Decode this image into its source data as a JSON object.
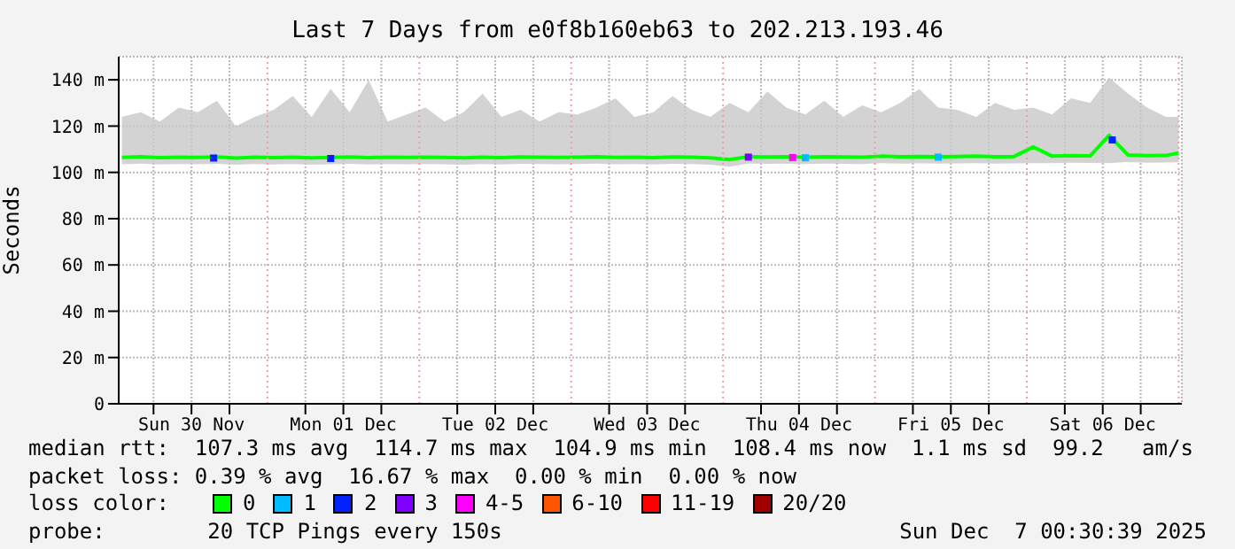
{
  "chart_data": {
    "type": "line",
    "title": "Last 7 Days from e0f8b160eb63 to 202.213.193.46",
    "ylabel": "Seconds",
    "legend_title": "loss color:",
    "legend": "bottom",
    "grid": true,
    "xlim": [
      "2025-11-30T00:30",
      "2025-12-07T00:30"
    ],
    "xticks": [
      {
        "value": "2025-11-30T06:00",
        "label": null
      },
      {
        "value": "2025-11-30T12:00",
        "label": "Sun 30 Nov"
      },
      {
        "value": "2025-11-30T18:00",
        "label": null
      },
      {
        "value": "2025-12-01T06:00",
        "label": null
      },
      {
        "value": "2025-12-01T12:00",
        "label": "Mon 01 Dec"
      },
      {
        "value": "2025-12-01T18:00",
        "label": null
      },
      {
        "value": "2025-12-02T06:00",
        "label": null
      },
      {
        "value": "2025-12-02T12:00",
        "label": "Tue 02 Dec"
      },
      {
        "value": "2025-12-02T18:00",
        "label": null
      },
      {
        "value": "2025-12-03T06:00",
        "label": null
      },
      {
        "value": "2025-12-03T12:00",
        "label": "Wed 03 Dec"
      },
      {
        "value": "2025-12-03T18:00",
        "label": null
      },
      {
        "value": "2025-12-04T06:00",
        "label": null
      },
      {
        "value": "2025-12-04T12:00",
        "label": "Thu 04 Dec"
      },
      {
        "value": "2025-12-04T18:00",
        "label": null
      },
      {
        "value": "2025-12-05T06:00",
        "label": null
      },
      {
        "value": "2025-12-05T12:00",
        "label": "Fri 05 Dec"
      },
      {
        "value": "2025-12-05T18:00",
        "label": null
      },
      {
        "value": "2025-12-06T06:00",
        "label": null
      },
      {
        "value": "2025-12-06T12:00",
        "label": "Sat 06 Dec"
      },
      {
        "value": "2025-12-06T18:00",
        "label": null
      }
    ],
    "ylim": [
      0,
      150
    ],
    "yticks": [
      {
        "value": 0,
        "label": "0"
      },
      {
        "value": 20,
        "label": "20 m"
      },
      {
        "value": 40,
        "label": "40 m"
      },
      {
        "value": 60,
        "label": "60 m"
      },
      {
        "value": 80,
        "label": "80 m"
      },
      {
        "value": 100,
        "label": "100 m"
      },
      {
        "value": 120,
        "label": "120 m"
      },
      {
        "value": 140,
        "label": "140 m"
      }
    ],
    "ref_lines": [
      {
        "axis": "x",
        "value": "2025-12-01T00:00",
        "color": "#f0a0a0",
        "line_style": "dotted"
      },
      {
        "axis": "x",
        "value": "2025-12-02T00:00",
        "color": "#f0a0a0",
        "line_style": "dotted"
      },
      {
        "axis": "x",
        "value": "2025-12-03T00:00",
        "color": "#f0a0a0",
        "line_style": "dotted"
      },
      {
        "axis": "x",
        "value": "2025-12-04T00:00",
        "color": "#f0a0a0",
        "line_style": "dotted"
      },
      {
        "axis": "x",
        "value": "2025-12-05T00:00",
        "color": "#f0a0a0",
        "line_style": "dotted"
      },
      {
        "axis": "x",
        "value": "2025-12-06T00:00",
        "color": "#f0a0a0",
        "line_style": "dotted"
      },
      {
        "axis": "x",
        "value": "2025-12-07T00:00",
        "color": "#f0a0a0",
        "line_style": "dotted"
      }
    ],
    "x": [
      "2025-11-30T01:00",
      "2025-11-30T04:00",
      "2025-11-30T07:00",
      "2025-11-30T10:00",
      "2025-11-30T13:00",
      "2025-11-30T16:00",
      "2025-11-30T19:00",
      "2025-11-30T22:00",
      "2025-12-01T01:00",
      "2025-12-01T04:00",
      "2025-12-01T07:00",
      "2025-12-01T10:00",
      "2025-12-01T13:00",
      "2025-12-01T16:00",
      "2025-12-01T19:00",
      "2025-12-01T22:00",
      "2025-12-02T01:00",
      "2025-12-02T04:00",
      "2025-12-02T07:00",
      "2025-12-02T10:00",
      "2025-12-02T13:00",
      "2025-12-02T16:00",
      "2025-12-02T19:00",
      "2025-12-02T22:00",
      "2025-12-03T01:00",
      "2025-12-03T04:00",
      "2025-12-03T07:00",
      "2025-12-03T10:00",
      "2025-12-03T13:00",
      "2025-12-03T16:00",
      "2025-12-03T19:00",
      "2025-12-03T22:00",
      "2025-12-04T01:00",
      "2025-12-04T04:00",
      "2025-12-04T07:00",
      "2025-12-04T10:00",
      "2025-12-04T13:00",
      "2025-12-04T16:00",
      "2025-12-04T19:00",
      "2025-12-04T22:00",
      "2025-12-05T01:00",
      "2025-12-05T04:00",
      "2025-12-05T07:00",
      "2025-12-05T10:00",
      "2025-12-05T13:00",
      "2025-12-05T16:00",
      "2025-12-05T19:00",
      "2025-12-05T22:00",
      "2025-12-06T01:00",
      "2025-12-06T04:00",
      "2025-12-06T07:00",
      "2025-12-06T10:00",
      "2025-12-06T13:00",
      "2025-12-06T16:00",
      "2025-12-06T19:00",
      "2025-12-06T22:00",
      "2025-12-07T00:00"
    ],
    "series": [
      {
        "name": "0",
        "color": "#00ff00",
        "values": [
          106.5,
          106.8,
          106.4,
          106.6,
          106.5,
          106.7,
          106.2,
          106.6,
          106.4,
          106.6,
          106.3,
          106.5,
          106.7,
          106.4,
          106.6,
          106.5,
          106.6,
          106.5,
          106.3,
          106.6,
          106.4,
          106.7,
          106.6,
          106.5,
          106.6,
          106.8,
          106.5,
          106.6,
          106.4,
          106.7,
          106.6,
          106.3,
          105.5,
          106.8,
          106.7,
          106.8,
          106.6,
          106.8,
          106.7,
          106.6,
          107,
          106.8,
          106.9,
          106.8,
          106.9,
          107,
          106.8,
          106.9,
          111,
          107,
          107.2,
          107.1,
          116,
          107.5,
          107.2,
          107.3,
          108.4
        ],
        "lower": [
          103.5,
          103.8,
          103.4,
          103.6,
          103.5,
          103.7,
          103.3,
          103.6,
          103.4,
          103.6,
          103.3,
          103.5,
          103.7,
          103.4,
          103.6,
          103.5,
          103.6,
          103.5,
          103.3,
          103.6,
          103.4,
          103.7,
          103.6,
          103.5,
          103.6,
          103.8,
          103.5,
          103.6,
          103.4,
          103.7,
          103.6,
          103.3,
          102.5,
          103.8,
          103.7,
          103.8,
          103.6,
          103.8,
          103.7,
          103.6,
          104,
          103.8,
          103.9,
          103.8,
          103.9,
          104,
          103.8,
          103.9,
          104,
          104,
          104.2,
          104.1,
          104,
          104.5,
          104.2,
          104.3,
          104.4
        ],
        "upper": [
          124,
          126,
          122,
          128,
          126,
          131,
          120,
          124,
          127,
          133,
          124,
          136,
          126,
          140,
          122,
          125,
          128,
          122,
          126,
          134,
          124,
          127,
          122,
          126,
          125,
          128,
          132,
          124,
          126,
          133,
          127,
          124,
          130,
          126,
          135,
          128,
          125,
          131,
          124,
          129,
          126,
          130,
          136,
          128,
          127,
          124,
          130,
          127,
          128,
          125,
          132,
          130,
          141,
          134,
          128,
          124,
          124
        ]
      },
      {
        "name": "1",
        "type": "scatter",
        "marker": "square",
        "color": "#00bbff",
        "x": [
          "2025-12-04T13:00",
          "2025-12-05T10:00"
        ],
        "values": [
          106.3,
          106.6
        ]
      },
      {
        "name": "2",
        "type": "scatter",
        "marker": "square",
        "color": "#0022ff",
        "x": [
          "2025-11-30T15:30",
          "2025-12-01T10:00",
          "2025-12-06T13:30"
        ],
        "values": [
          106.2,
          106,
          114
        ]
      },
      {
        "name": "3",
        "type": "scatter",
        "marker": "square",
        "color": "#7e00ff",
        "x": [
          "2025-12-04T04:00"
        ],
        "values": [
          106.6
        ]
      },
      {
        "name": "4-5",
        "type": "scatter",
        "marker": "square",
        "color": "#ff00ff",
        "x": [
          "2025-12-04T11:00"
        ],
        "values": [
          106.4
        ]
      },
      {
        "name": "6-10",
        "type": "scatter",
        "marker": "square",
        "color": "#ff5500",
        "values": [
          null,
          null,
          null,
          null,
          null,
          null,
          null,
          null,
          null,
          null,
          null,
          null,
          null,
          null,
          null,
          null,
          null,
          null,
          null,
          null,
          null,
          null,
          null,
          null,
          null,
          null,
          null,
          null,
          null,
          null,
          null,
          null,
          null,
          null,
          null,
          null,
          null,
          null,
          null,
          null,
          null,
          null,
          null,
          null,
          null,
          null,
          null,
          null,
          null,
          null,
          null,
          null,
          null,
          null,
          null,
          null,
          null
        ]
      },
      {
        "name": "11-19",
        "type": "scatter",
        "marker": "square",
        "color": "#ff0000",
        "values": [
          null,
          null,
          null,
          null,
          null,
          null,
          null,
          null,
          null,
          null,
          null,
          null,
          null,
          null,
          null,
          null,
          null,
          null,
          null,
          null,
          null,
          null,
          null,
          null,
          null,
          null,
          null,
          null,
          null,
          null,
          null,
          null,
          null,
          null,
          null,
          null,
          null,
          null,
          null,
          null,
          null,
          null,
          null,
          null,
          null,
          null,
          null,
          null,
          null,
          null,
          null,
          null,
          null,
          null,
          null,
          null,
          null
        ]
      },
      {
        "name": "20/20",
        "type": "scatter",
        "marker": "square",
        "color": "#a00000",
        "values": [
          null,
          null,
          null,
          null,
          null,
          null,
          null,
          null,
          null,
          null,
          null,
          null,
          null,
          null,
          null,
          null,
          null,
          null,
          null,
          null,
          null,
          null,
          null,
          null,
          null,
          null,
          null,
          null,
          null,
          null,
          null,
          null,
          null,
          null,
          null,
          null,
          null,
          null,
          null,
          null,
          null,
          null,
          null,
          null,
          null,
          null,
          null,
          null,
          null,
          null,
          null,
          null,
          null,
          null,
          null,
          null,
          null
        ]
      }
    ],
    "annotations": [
      "median rtt:  107.3 ms avg  114.7 ms max  104.9 ms min  108.4 ms now  1.1 ms sd  99.2   am/s",
      "packet loss: 0.39 % avg  16.67 % max  0.00 % min  0.00 % now",
      "probe:        20 TCP Pings every 150s",
      "Sun Dec  7 00:30:39 2025"
    ]
  }
}
